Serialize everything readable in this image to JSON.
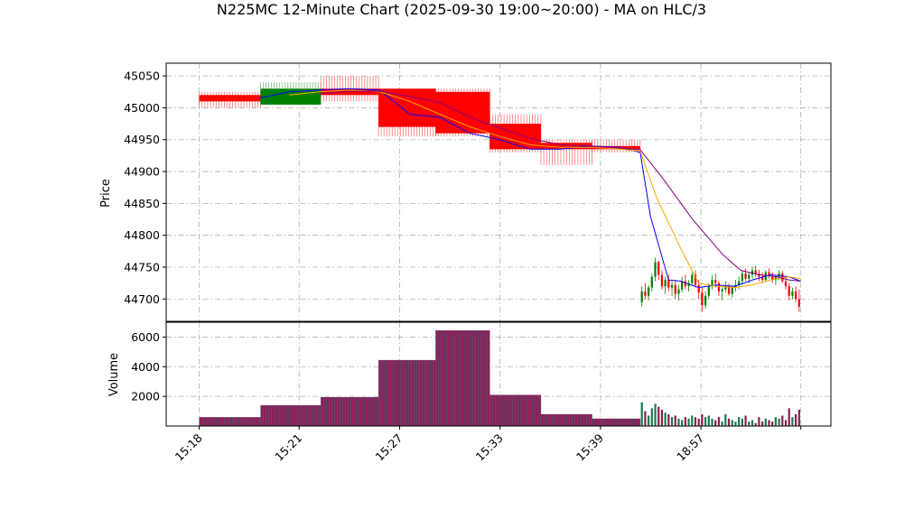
{
  "chart_data": {
    "type": "candlestick",
    "title": "N225MC 12-Minute Chart (2025-09-30 19:00~20:00) - MA on HLC/3",
    "price_panel": {
      "ylabel": "Price",
      "ylim": [
        44665,
        45070
      ],
      "yticks": [
        44700,
        44750,
        44800,
        44850,
        44900,
        44950,
        45000,
        45050
      ]
    },
    "volume_panel": {
      "ylabel": "Volume",
      "ylim": [
        0,
        7000
      ],
      "yticks": [
        2000,
        4000,
        6000
      ]
    },
    "x_ticks": [
      {
        "label": "15:18",
        "pos": 0
      },
      {
        "label": "15:21",
        "pos": 1.66
      },
      {
        "label": "15:27",
        "pos": 3.33
      },
      {
        "label": "15:33",
        "pos": 5.0
      },
      {
        "label": "15:39",
        "pos": 6.67
      },
      {
        "label": "18:57",
        "pos": 8.34
      },
      {
        "label": "",
        "pos": 10.0
      }
    ],
    "x_range": [
      -0.55,
      10.5
    ],
    "block_segments": [
      {
        "x0": 0.0,
        "x1": 1.02,
        "open": 45010,
        "high": 45025,
        "low": 45000,
        "close": 45020,
        "color": "#ff0000",
        "volume": 600
      },
      {
        "x0": 1.02,
        "x1": 2.02,
        "open": 45005,
        "high": 45040,
        "low": 45005,
        "close": 45030,
        "color": "#008000",
        "volume": 1400
      },
      {
        "x0": 2.02,
        "x1": 2.98,
        "open": 45030,
        "high": 45050,
        "low": 45010,
        "close": 45020,
        "color": "#ff0000",
        "volume": 1950
      },
      {
        "x0": 2.98,
        "x1": 3.93,
        "open": 45030,
        "high": 45030,
        "low": 44955,
        "close": 44970,
        "color": "#ff0000",
        "volume": 4450
      },
      {
        "x0": 3.93,
        "x1": 4.83,
        "open": 45025,
        "high": 45030,
        "low": 44955,
        "close": 44960,
        "color": "#ff0000",
        "volume": 6450
      },
      {
        "x0": 4.83,
        "x1": 5.68,
        "open": 44975,
        "high": 44990,
        "low": 44930,
        "close": 44935,
        "color": "#ff0000",
        "volume": 2100
      },
      {
        "x0": 5.68,
        "x1": 6.53,
        "open": 44945,
        "high": 44950,
        "low": 44910,
        "close": 44935,
        "color": "#ff0000",
        "volume": 800
      },
      {
        "x0": 6.53,
        "x1": 7.33,
        "open": 44940,
        "high": 44950,
        "low": 44930,
        "close": 44935,
        "color": "#ff0000",
        "volume": 500
      },
      {
        "x0": 7.33,
        "x1": 7.33,
        "open": 44940,
        "high": 44940,
        "low": 44925,
        "close": 44925,
        "color": "#ff0000",
        "volume": 500
      }
    ],
    "minute_candles_start": 7.33,
    "minute_candles_end": 10.0,
    "minute_candles": [
      [
        44695,
        44720,
        44688,
        44712
      ],
      [
        44712,
        44725,
        44700,
        44705
      ],
      [
        44705,
        44722,
        44698,
        44718
      ],
      [
        44718,
        44740,
        44712,
        44735
      ],
      [
        44735,
        44765,
        44728,
        44758
      ],
      [
        44758,
        44760,
        44730,
        44738
      ],
      [
        44738,
        44745,
        44715,
        44720
      ],
      [
        44720,
        44735,
        44708,
        44730
      ],
      [
        44730,
        44738,
        44712,
        44718
      ],
      [
        44718,
        44728,
        44705,
        44722
      ],
      [
        44722,
        44730,
        44700,
        44708
      ],
      [
        44708,
        44722,
        44698,
        44715
      ],
      [
        44715,
        44735,
        44710,
        44728
      ],
      [
        44728,
        44738,
        44715,
        44720
      ],
      [
        44720,
        44730,
        44712,
        44725
      ],
      [
        44725,
        44742,
        44720,
        44738
      ],
      [
        44738,
        44745,
        44718,
        44722
      ],
      [
        44722,
        44730,
        44700,
        44710
      ],
      [
        44710,
        44718,
        44680,
        44690
      ],
      [
        44690,
        44712,
        44685,
        44705
      ],
      [
        44705,
        44725,
        44700,
        44720
      ],
      [
        44720,
        44738,
        44715,
        44730
      ],
      [
        44730,
        44740,
        44718,
        44725
      ],
      [
        44725,
        44728,
        44705,
        44712
      ],
      [
        44712,
        44718,
        44698,
        44715
      ],
      [
        44715,
        44728,
        44710,
        44720
      ],
      [
        44720,
        44725,
        44705,
        44708
      ],
      [
        44708,
        44722,
        44702,
        44718
      ],
      [
        44718,
        44730,
        44712,
        44722
      ],
      [
        44722,
        44735,
        44715,
        44728
      ],
      [
        44728,
        44745,
        44722,
        44740
      ],
      [
        44740,
        44748,
        44728,
        44732
      ],
      [
        44732,
        44742,
        44725,
        44738
      ],
      [
        44738,
        44750,
        44732,
        44745
      ],
      [
        44745,
        44752,
        44735,
        44740
      ],
      [
        44740,
        44746,
        44728,
        44735
      ],
      [
        44735,
        44742,
        44725,
        44730
      ],
      [
        44730,
        44745,
        44728,
        44742
      ],
      [
        44742,
        44748,
        44732,
        44736
      ],
      [
        44736,
        44742,
        44725,
        44730
      ],
      [
        44730,
        44738,
        44722,
        44735
      ],
      [
        44735,
        44745,
        44730,
        44740
      ],
      [
        44740,
        44744,
        44725,
        44728
      ],
      [
        44728,
        44735,
        44715,
        44720
      ],
      [
        44720,
        44725,
        44698,
        44705
      ],
      [
        44705,
        44718,
        44700,
        44712
      ],
      [
        44712,
        44720,
        44695,
        44700
      ],
      [
        44700,
        44715,
        44680,
        44688
      ]
    ],
    "minute_volumes": [
      1600,
      1000,
      700,
      1200,
      1500,
      1300,
      1100,
      900,
      800,
      600,
      700,
      500,
      400,
      600,
      500,
      700,
      600,
      500,
      800,
      600,
      700,
      500,
      400,
      600,
      300,
      800,
      500,
      400,
      300,
      600,
      500,
      700,
      300,
      400,
      200,
      600,
      300,
      500,
      400,
      300,
      600,
      500,
      700,
      400,
      1200,
      600,
      800,
      1100
    ],
    "moving_averages": [
      {
        "color": "#0000ff",
        "points": [
          [
            1.0,
            45015
          ],
          [
            1.5,
            45025
          ],
          [
            2.0,
            45028
          ],
          [
            2.5,
            45030
          ],
          [
            3.0,
            45028
          ],
          [
            3.5,
            44990
          ],
          [
            4.0,
            44985
          ],
          [
            4.5,
            44960
          ],
          [
            5.0,
            44950
          ],
          [
            5.5,
            44935
          ],
          [
            6.0,
            44935
          ],
          [
            6.5,
            44940
          ],
          [
            7.0,
            44938
          ],
          [
            7.33,
            44930
          ],
          [
            7.5,
            44830
          ],
          [
            7.8,
            44730
          ],
          [
            8.0,
            44728
          ],
          [
            8.3,
            44718
          ],
          [
            8.6,
            44722
          ],
          [
            8.9,
            44720
          ],
          [
            9.2,
            44730
          ],
          [
            9.5,
            44738
          ],
          [
            9.8,
            44735
          ],
          [
            10.0,
            44728
          ]
        ]
      },
      {
        "color": "#ffa500",
        "points": [
          [
            1.5,
            45020
          ],
          [
            2.0,
            45025
          ],
          [
            2.5,
            45028
          ],
          [
            3.0,
            45025
          ],
          [
            3.5,
            45010
          ],
          [
            4.0,
            44990
          ],
          [
            4.5,
            44970
          ],
          [
            5.0,
            44955
          ],
          [
            5.5,
            44942
          ],
          [
            6.0,
            44938
          ],
          [
            6.5,
            44938
          ],
          [
            7.0,
            44935
          ],
          [
            7.33,
            44932
          ],
          [
            7.6,
            44860
          ],
          [
            8.0,
            44780
          ],
          [
            8.3,
            44725
          ],
          [
            8.6,
            44720
          ],
          [
            8.9,
            44718
          ],
          [
            9.2,
            44722
          ],
          [
            9.5,
            44730
          ],
          [
            9.8,
            44735
          ],
          [
            10.0,
            44732
          ]
        ]
      },
      {
        "color": "#800080",
        "points": [
          [
            2.0,
            45022
          ],
          [
            2.5,
            45026
          ],
          [
            3.0,
            45026
          ],
          [
            3.5,
            45018
          ],
          [
            4.0,
            45008
          ],
          [
            4.5,
            44985
          ],
          [
            5.0,
            44968
          ],
          [
            5.5,
            44952
          ],
          [
            6.0,
            44942
          ],
          [
            6.5,
            44940
          ],
          [
            7.0,
            44937
          ],
          [
            7.33,
            44934
          ],
          [
            7.7,
            44890
          ],
          [
            8.2,
            44825
          ],
          [
            8.7,
            44770
          ],
          [
            9.0,
            44745
          ],
          [
            9.3,
            44738
          ],
          [
            9.6,
            44735
          ],
          [
            9.8,
            44730
          ],
          [
            10.0,
            44728
          ]
        ]
      }
    ]
  }
}
